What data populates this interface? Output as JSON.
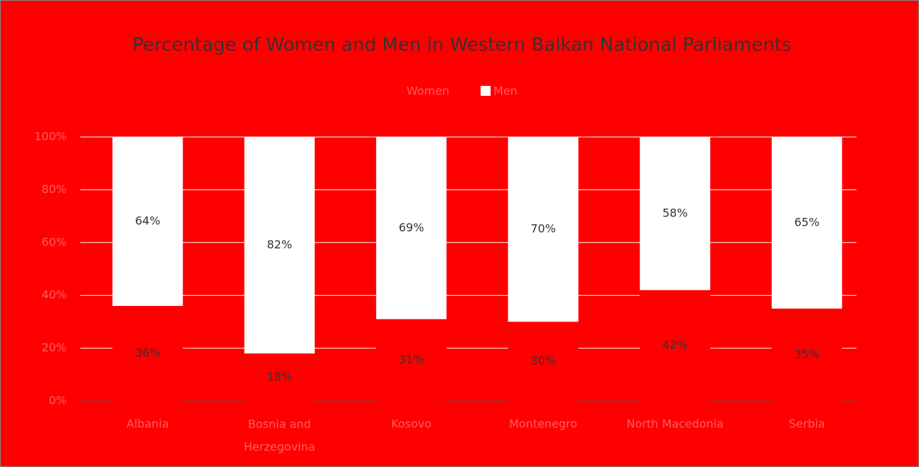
{
  "chart_data": {
    "type": "stacked-bar",
    "title": "Percentage of Women and Men in Western Balkan National Parliaments",
    "categories": [
      "Albania",
      "Bosnia and Herzegovina",
      "Kosovo",
      "Montenegro",
      "North Macedonia",
      "Serbia"
    ],
    "series": [
      {
        "name": "Women",
        "color": "#ff0000",
        "values": [
          36,
          18,
          31,
          30,
          42,
          35
        ],
        "value_labels": [
          "36%",
          "18%",
          "31%",
          "30%",
          "42%",
          "35%"
        ]
      },
      {
        "name": "Men",
        "color": "#ffffff",
        "values": [
          64,
          82,
          69,
          70,
          58,
          65
        ],
        "value_labels": [
          "64%",
          "82%",
          "69%",
          "70%",
          "58%",
          "65%"
        ]
      }
    ],
    "ylim": [
      0,
      100
    ],
    "yticks": [
      {
        "value": 0,
        "label": "0%"
      },
      {
        "value": 20,
        "label": "20%"
      },
      {
        "value": 40,
        "label": "40%"
      },
      {
        "value": 60,
        "label": "60%"
      },
      {
        "value": 80,
        "label": "80%"
      },
      {
        "value": 100,
        "label": "100%"
      }
    ],
    "grid": true,
    "legend": "top"
  }
}
